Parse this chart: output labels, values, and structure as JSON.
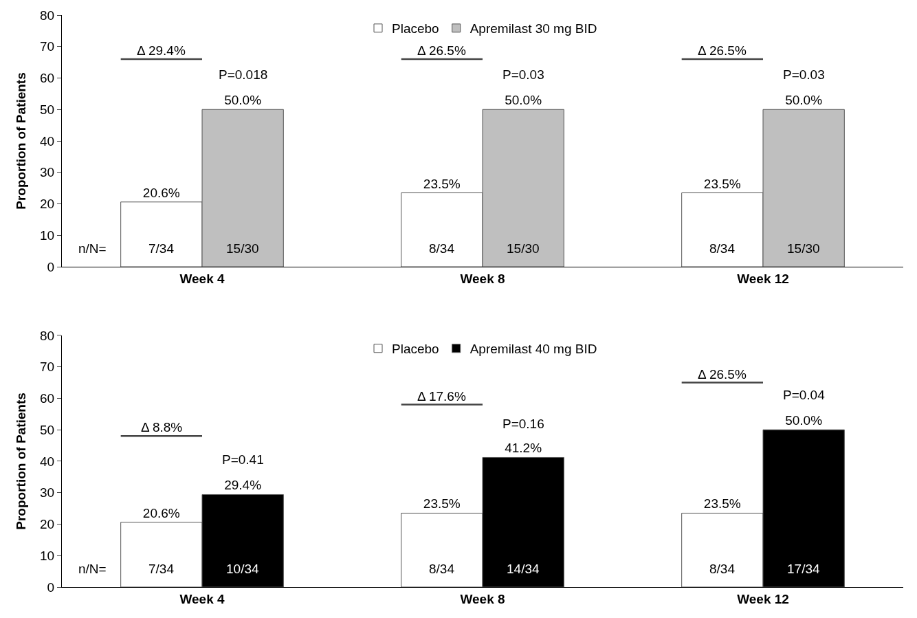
{
  "chart_data": [
    {
      "type": "bar",
      "ylabel": "Proportion of Patients",
      "categories": [
        "Week 4",
        "Week 8",
        "Week 12"
      ],
      "ylim": [
        0,
        80
      ],
      "yticks": [
        0,
        10,
        20,
        30,
        40,
        50,
        60,
        70,
        80
      ],
      "legend": "top",
      "series": [
        {
          "name": "Placebo",
          "color": "#ffffff",
          "values": [
            20.6,
            23.5,
            23.5
          ],
          "value_labels": [
            "20.6%",
            "23.5%",
            "23.5%"
          ]
        },
        {
          "name": "Apremilast 30 mg BID",
          "color": "#bfbfbf",
          "values": [
            50.0,
            50.0,
            50.0
          ],
          "value_labels": [
            "50.0%",
            "50.0%",
            "50.0%"
          ]
        }
      ],
      "annotations": [
        "n/N=",
        "7/34",
        "15/30",
        "Δ 29.4%",
        "P=0.018",
        "8/34",
        "15/30",
        "Δ 26.5%",
        "P=0.03",
        "8/34",
        "15/30",
        "Δ 26.5%",
        "P=0.03"
      ]
    },
    {
      "type": "bar",
      "ylabel": "Proportion of Patients",
      "categories": [
        "Week 4",
        "Week 8",
        "Week 12"
      ],
      "ylim": [
        0,
        80
      ],
      "yticks": [
        0,
        10,
        20,
        30,
        40,
        50,
        60,
        70,
        80
      ],
      "legend": "top",
      "series": [
        {
          "name": "Placebo",
          "color": "#ffffff",
          "values": [
            20.6,
            23.5,
            23.5
          ],
          "value_labels": [
            "20.6%",
            "23.5%",
            "23.5%"
          ]
        },
        {
          "name": "Apremilast 40 mg BID",
          "color": "#000000",
          "values": [
            29.4,
            41.2,
            50.0
          ],
          "value_labels": [
            "29.4%",
            "41.2%",
            "50.0%"
          ]
        }
      ],
      "annotations": [
        "n/N=",
        "7/34",
        "10/34",
        "Δ 8.8%",
        "P=0.41",
        "8/34",
        "14/34",
        "Δ 17.6%",
        "P=0.16",
        "8/34",
        "17/34",
        "Δ 26.5%",
        "P=0.04"
      ]
    }
  ]
}
